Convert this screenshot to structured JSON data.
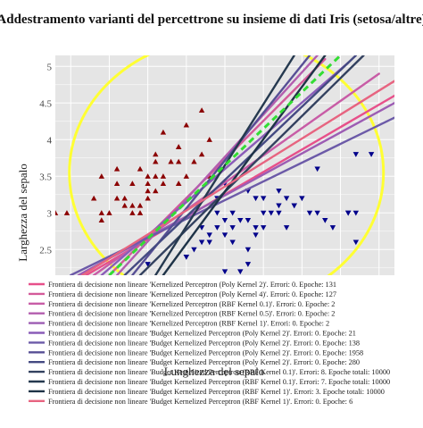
{
  "chart_data": {
    "type": "scatter",
    "title": "Addestramento varianti del percettrone su insieme di dati Iris (setosa/altre)",
    "xlabel": "Lunghezza del sepalo",
    "ylabel": "Larghezza del sepalo",
    "xlim": [
      3.8,
      8.2
    ],
    "ylim": [
      2.15,
      5.15
    ],
    "yticks": [
      2.5,
      3,
      3.5,
      4,
      4.5,
      5
    ],
    "grid": true,
    "background": "#e5e5e5",
    "legend_position": "bottom",
    "setosa_points": {
      "color": "#8b0000",
      "marker": "triangle-up",
      "x": [
        3.8,
        3.95,
        4.4,
        4.5,
        4.3,
        4.4,
        4.4,
        4.6,
        4.6,
        4.6,
        4.7,
        4.7,
        4.8,
        4.8,
        4.8,
        4.9,
        4.9,
        4.9,
        5.0,
        5.0,
        5.0,
        5.0,
        5.1,
        5.1,
        5.1,
        5.1,
        5.2,
        5.2,
        5.2,
        5.3,
        5.4,
        5.4,
        5.4,
        5.4,
        5.4,
        5.5,
        5.5,
        5.6,
        5.7,
        5.7,
        5.8,
        5.8
      ],
      "y": [
        3.0,
        3.0,
        3.5,
        3.0,
        3.2,
        3.0,
        2.9,
        3.2,
        3.4,
        3.6,
        3.2,
        3.1,
        3.0,
        3.4,
        3.1,
        3.0,
        3.1,
        3.6,
        3.3,
        3.5,
        3.4,
        3.2,
        3.5,
        3.8,
        3.3,
        3.7,
        3.5,
        3.4,
        4.1,
        3.7,
        3.9,
        3.4,
        3.7,
        3.9,
        3.4,
        4.2,
        3.5,
        3.7,
        4.4,
        3.8,
        4.0,
        3.5
      ]
    },
    "other_points": {
      "color": "#00008b",
      "marker": "triangle-down",
      "x": [
        5.0,
        5.5,
        5.7,
        5.8,
        5.9,
        5.9,
        5.9,
        6.0,
        6.0,
        6.0,
        6.1,
        6.1,
        6.2,
        6.2,
        6.3,
        6.3,
        6.3,
        6.3,
        6.4,
        6.4,
        6.4,
        6.5,
        6.5,
        6.5,
        6.6,
        6.7,
        6.7,
        6.7,
        6.8,
        6.8,
        6.9,
        7.0,
        7.1,
        7.2,
        7.2,
        7.3,
        7.4,
        7.6,
        7.7,
        7.7,
        7.7,
        7.9,
        5.6,
        5.7,
        5.8,
        5.5,
        6.0,
        6.1,
        6.9,
        7.6
      ],
      "y": [
        2.3,
        2.4,
        2.6,
        2.7,
        3.0,
        3.2,
        2.8,
        2.2,
        2.9,
        3.4,
        2.8,
        3.0,
        2.2,
        2.9,
        2.3,
        2.5,
        3.3,
        2.9,
        3.2,
        2.8,
        2.7,
        2.8,
        3.0,
        3.2,
        3.0,
        3.1,
        3.0,
        3.3,
        2.8,
        3.2,
        3.1,
        3.2,
        3.0,
        3.6,
        3.0,
        2.9,
        2.8,
        3.0,
        3.8,
        2.6,
        3.0,
        3.8,
        2.5,
        2.8,
        2.6,
        2.4,
        2.7,
        2.6,
        3.1,
        3.0
      ]
    },
    "highlight_circle": {
      "color": "#ffff33"
    },
    "series": [
      {
        "name": "Frontiera di decisione non lineare 'Kernelized Perceptron (Poly Kernel 2)'. Errori: 0. Epoche: 131",
        "color": "#e7508a",
        "x": [
          4.2,
          8.2
        ],
        "y": [
          2.15,
          4.6
        ]
      },
      {
        "name": "Frontiera di decisione non lineare 'Kernelized Perceptron (Poly Kernel 4)'. Errori: 0. Epoche: 127",
        "color": "#d45a9a",
        "x": [
          4.5,
          7.3
        ],
        "y": [
          2.15,
          5.1
        ]
      },
      {
        "name": "Frontiera di decisione non lineare 'Kernelized Perceptron (RBF Kernel 0.1)'. Errori: 0. Epoche: 2",
        "color": "#c85ca6",
        "x": [
          4.3,
          8.0
        ],
        "y": [
          2.15,
          4.9
        ]
      },
      {
        "name": "Frontiera di decisione non lineare 'Kernelized Perceptron (RBF Kernel 0.5)'. Errori: 0. Epoche: 2",
        "color": "#b35dae",
        "x": [
          4.6,
          7.2
        ],
        "y": [
          2.15,
          5.15
        ]
      },
      {
        "name": "Frontiera di decisione non lineare 'Kernelized Perceptron (RBF Kernel 1)'. Errori: 0. Epoche: 2",
        "color": "#9c5cb3",
        "x": [
          4.1,
          8.2
        ],
        "y": [
          2.15,
          4.5
        ]
      },
      {
        "name": "Frontiera di decisione non lineare 'Budget Kernelized Perceptron (Poly Kernel 2)'. Errori: 0. Epoche: 21",
        "color": "#8a5cb8",
        "x": [
          4.4,
          7.6
        ],
        "y": [
          2.15,
          5.05
        ]
      },
      {
        "name": "Frontiera di decisione non lineare 'Budget Kernelized Perceptron (Poly Kernel 2)'. Errori: 0. Epoche: 138",
        "color": "#6c5aa8",
        "x": [
          4.0,
          8.2
        ],
        "y": [
          2.15,
          4.3
        ]
      },
      {
        "name": "Frontiera di decisione non lineare 'Budget Kernelized Perceptron (Poly Kernel 2)'. Errori: 0. Epoche: 1958",
        "color": "#574f95",
        "x": [
          4.8,
          7.1
        ],
        "y": [
          2.15,
          5.15
        ]
      },
      {
        "name": "Frontiera di decisione non lineare 'Budget Kernelized Perceptron (Poly Kernel 2)'. Errori: 0. Epoche: 280",
        "color": "#444a82",
        "x": [
          4.7,
          7.7
        ],
        "y": [
          2.15,
          5.15
        ]
      },
      {
        "name": "Frontiera di decisione non lineare 'Budget Kernelized Perceptron (RBF Kernel 0.1)'. Errori: 8. Epoche totali: 10000",
        "color": "#33415f",
        "x": [
          4.9,
          7.8
        ],
        "y": [
          2.15,
          5.15
        ]
      },
      {
        "name": "Frontiera di decisione non lineare 'Budget Kernelized Perceptron (RBF Kernel 0.1)'. Errori: 7. Epoche totali: 10000",
        "color": "#25394f",
        "x": [
          5.1,
          6.9
        ],
        "y": [
          2.15,
          5.15
        ]
      },
      {
        "name": "Frontiera di decisione non lineare 'Budget Kernelized Perceptron (RBF Kernel 1)'. Errori: 3. Epoche totali: 10000",
        "color": "#1e3347",
        "x": [
          5.2,
          7.3
        ],
        "y": [
          2.15,
          5.15
        ]
      },
      {
        "name": "Frontiera di decisione non lineare 'Budget Kernelized Perceptron (RBF Kernel 1)'. Errori: 0. Epoche: 6",
        "color": "#e76480",
        "x": [
          4.15,
          8.2
        ],
        "y": [
          2.15,
          4.8
        ]
      }
    ],
    "reference_line": {
      "color": "#33dd33",
      "dash": true,
      "x": [
        4.5,
        7.5
      ],
      "y": [
        2.15,
        5.15
      ]
    }
  }
}
